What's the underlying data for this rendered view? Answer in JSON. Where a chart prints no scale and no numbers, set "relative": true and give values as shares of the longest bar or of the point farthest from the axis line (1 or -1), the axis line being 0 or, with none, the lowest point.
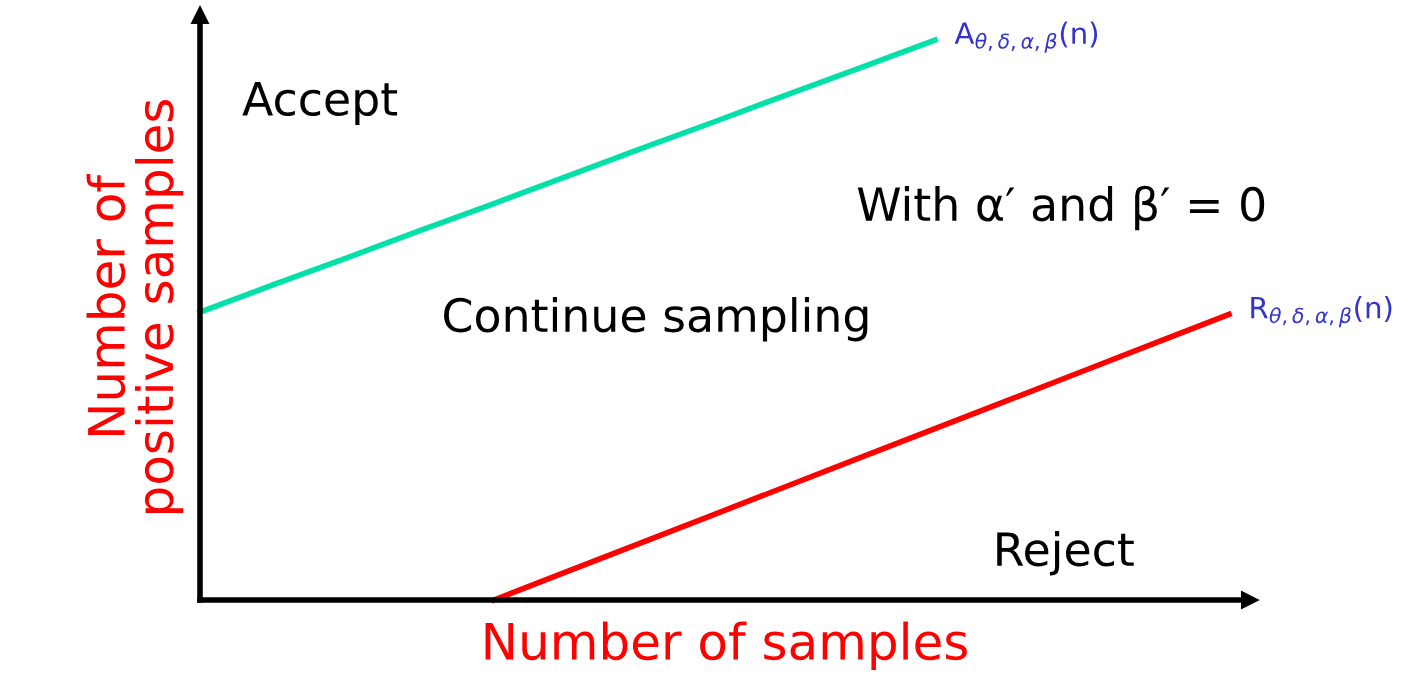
{
  "chart_data": {
    "type": "line",
    "relative": true,
    "xlabel": "Number of samples",
    "ylabel": "Number of\npositive samples",
    "categories": [
      null,
      null,
      null,
      null,
      null,
      null,
      null,
      null,
      null,
      null,
      null,
      null,
      null,
      null,
      null
    ],
    "legend": false,
    "marker": "none",
    "line_style": "solid",
    "series": [
      {
        "name": "A$_{θ,δ,α,β}$(n)",
        "color": "#00e0a8",
        "values": [
          0.514,
          0.563,
          0.611,
          0.66,
          0.708,
          0.757,
          0.806,
          0.854,
          0.903,
          0.951,
          1,
          null,
          null,
          null,
          null
        ]
      },
      {
        "name": "R$_{θ,δ,α,β}$(n)",
        "color": "#ff0000",
        "values": [
          null,
          null,
          null,
          null,
          0,
          0.051,
          0.102,
          0.153,
          0.204,
          0.255,
          0.306,
          0.357,
          0.408,
          0.459,
          0.51
        ]
      }
    ],
    "annotations": [
      "Accept",
      "Continue sampling",
      "With α′ and β′ = 0",
      "Reject"
    ]
  }
}
